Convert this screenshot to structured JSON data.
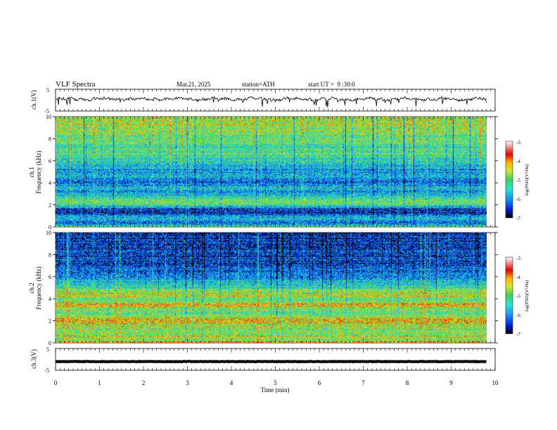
{
  "header": {
    "title": "VLF Spectra",
    "date": "Mar.21, 2025",
    "station": "station=ATH",
    "start": "start UT =  9 :30:0"
  },
  "colors": {
    "background": "#ffffff",
    "axis": "#000000",
    "trace": "#000000",
    "colormap": [
      "#000000",
      "#0018d8",
      "#1496ff",
      "#28e6d2",
      "#3cd25a",
      "#d2e628",
      "#ffb400",
      "#e60000",
      "#ffffff"
    ]
  },
  "chart_data": [
    {
      "type": "line",
      "name": "ch1-waveform",
      "ylabel": "ch.1(V)",
      "xlim": [
        0,
        10
      ],
      "ylim": [
        -5,
        5
      ],
      "yticks": [
        "5",
        "-5"
      ],
      "x_extent_min": 9.8,
      "baseline_v": 0.5,
      "spread_v": 1.2
    },
    {
      "type": "heatmap",
      "name": "ch1-spectrogram",
      "ylabel_line1": "ch.1",
      "ylabel_line2": "Frequency (kHz)",
      "xlim": [
        0,
        10
      ],
      "ylim": [
        0,
        10
      ],
      "yticks": [
        0,
        2,
        4,
        6,
        8,
        10
      ],
      "x_extent_min": 9.8,
      "colorbar": {
        "label": "log(PSD)(V²/Hz)",
        "range": [
          -7,
          -3
        ],
        "ticks": [
          "-3",
          "-4",
          "-5",
          "-6",
          "-7"
        ]
      },
      "freq_profile_khz": [
        0,
        0.3,
        0.6,
        0.9,
        1.2,
        1.6,
        2.0,
        2.3,
        2.7,
        3.2,
        3.6,
        4.0,
        4.5,
        5.0,
        5.5,
        6.0,
        7.0,
        8.0,
        9.0,
        10.0
      ],
      "freq_profile_logpsd": [
        -5.0,
        -6.4,
        -5.6,
        -5.7,
        -6.5,
        -6.3,
        -5.2,
        -4.9,
        -5.4,
        -6.0,
        -5.6,
        -6.2,
        -5.6,
        -6.0,
        -5.8,
        -5.4,
        -5.2,
        -5.0,
        -4.8,
        -4.7
      ]
    },
    {
      "type": "heatmap",
      "name": "ch2-spectrogram",
      "ylabel_line1": "ch.2",
      "ylabel_line2": "Frequency (kHz)",
      "xlim": [
        0,
        10
      ],
      "ylim": [
        0,
        10
      ],
      "yticks": [
        0,
        2,
        4,
        6,
        8,
        10
      ],
      "x_extent_min": 9.8,
      "colorbar": {
        "label": "log(PSD)(V²/Hz)",
        "range": [
          -7,
          -3
        ],
        "ticks": [
          "-3",
          "-4",
          "-5",
          "-6",
          "-7"
        ]
      },
      "freq_profile_khz": [
        0,
        0.3,
        0.6,
        1.0,
        1.5,
        2.0,
        2.2,
        2.6,
        3.0,
        3.5,
        3.8,
        4.5,
        5.0,
        5.5,
        6.0,
        7.0,
        8.0,
        9.0,
        10.0
      ],
      "freq_profile_logpsd": [
        -4.2,
        -4.8,
        -4.6,
        -4.9,
        -4.8,
        -4.2,
        -4.5,
        -5.0,
        -4.9,
        -4.3,
        -5.0,
        -4.6,
        -5.3,
        -5.6,
        -6.0,
        -6.3,
        -6.4,
        -6.5,
        -6.5
      ]
    },
    {
      "type": "line",
      "name": "ch3-waveform",
      "ylabel": "ch.3(V)",
      "xlim": [
        0,
        10
      ],
      "ylim": [
        -5,
        5
      ],
      "yticks": [
        "5",
        "-5"
      ],
      "x_extent_min": 9.8,
      "baseline_v": -1.0,
      "spread_v": 0.2
    }
  ],
  "xaxis": {
    "label": "Time (min)",
    "ticks": [
      "0",
      "1",
      "2",
      "3",
      "4",
      "5",
      "6",
      "7",
      "8",
      "9",
      "10"
    ]
  }
}
